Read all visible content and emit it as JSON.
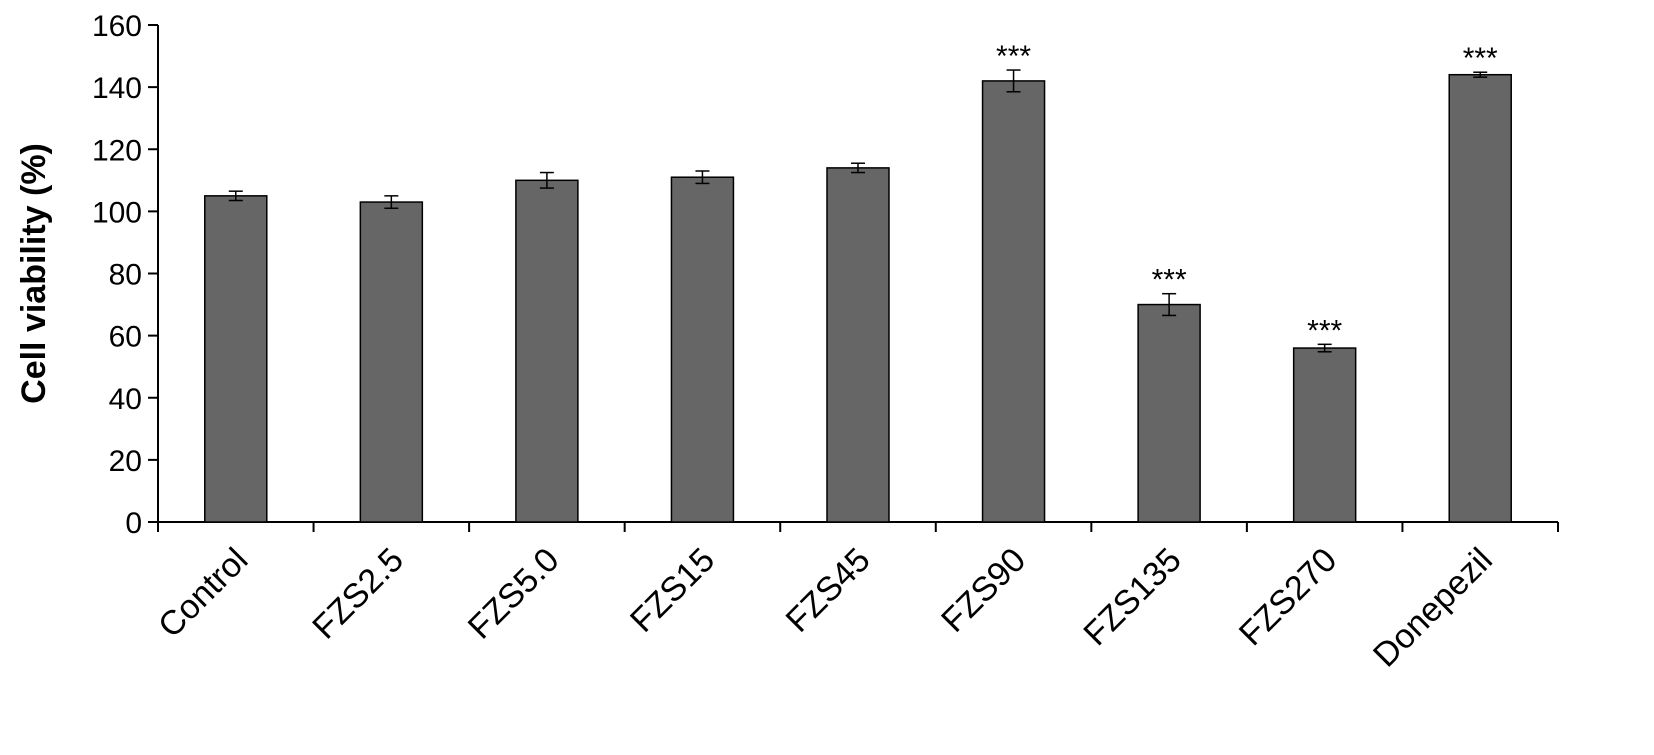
{
  "chart_data": {
    "type": "bar",
    "title": "",
    "xlabel": "",
    "ylabel": "Cell viability (%)",
    "ylim": [
      0,
      160
    ],
    "yticks": [
      0,
      20,
      40,
      60,
      80,
      100,
      120,
      140,
      160
    ],
    "grid": false,
    "legend": "none",
    "bar_color": "#666666",
    "categories": [
      "Control",
      "FZS2.5",
      "FZS5.0",
      "FZS15",
      "FZS45",
      "FZS90",
      "FZS135",
      "FZS270",
      "Donepezil"
    ],
    "values": [
      105,
      103,
      110,
      111,
      114,
      142,
      70,
      56,
      144
    ],
    "errors": [
      1.5,
      2,
      2.5,
      2,
      1.5,
      3.5,
      3.5,
      1.2,
      0.8
    ],
    "annotations": [
      "",
      "",
      "",
      "",
      "",
      "***",
      "***",
      "***",
      "***"
    ]
  }
}
